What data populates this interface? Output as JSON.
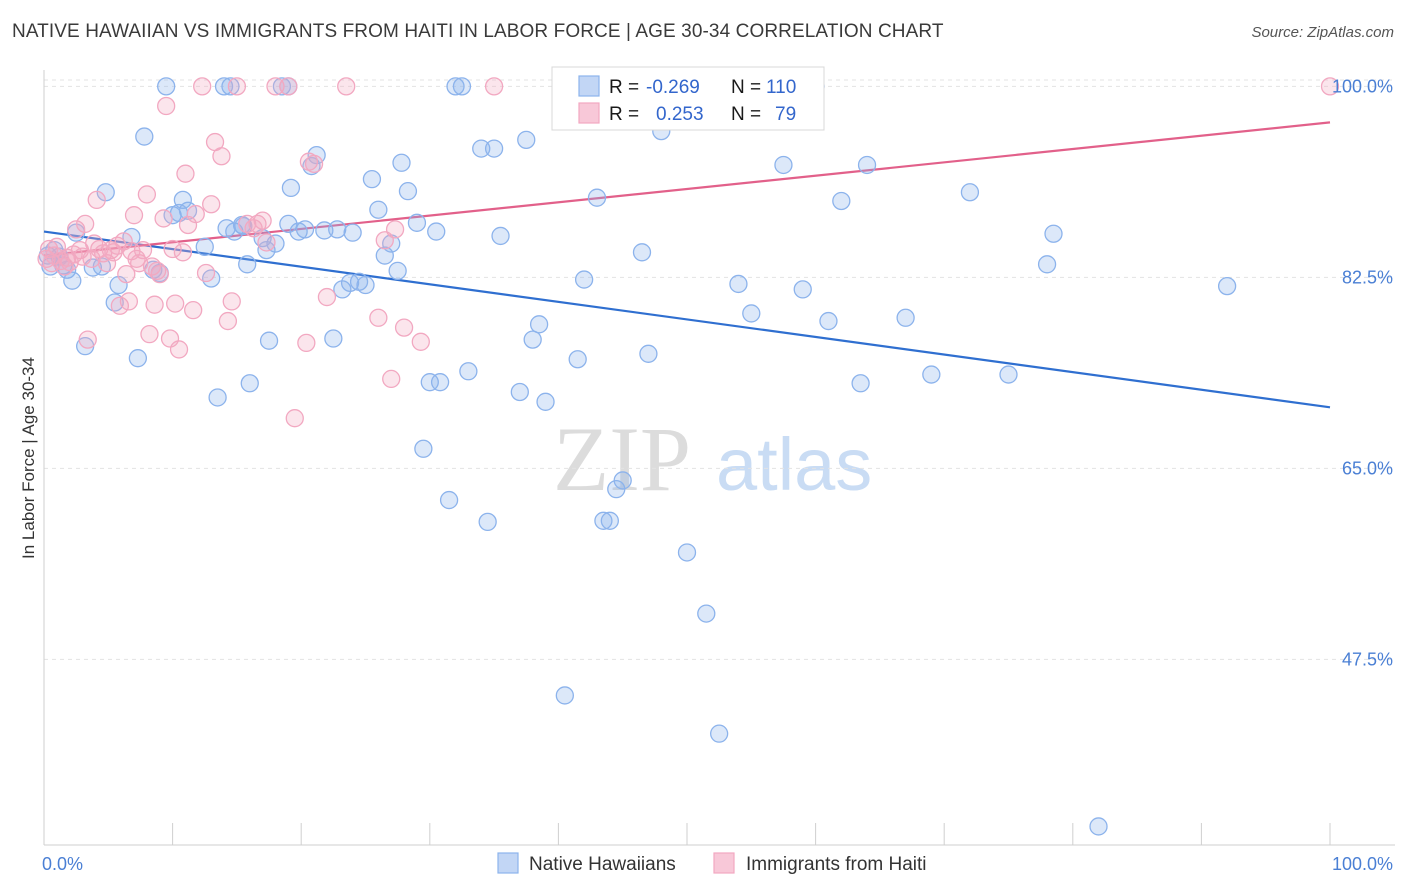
{
  "header": {
    "title": "NATIVE HAWAIIAN VS IMMIGRANTS FROM HAITI IN LABOR FORCE | AGE 30-34 CORRELATION CHART",
    "source": "Source: ZipAtlas.com"
  },
  "watermark": {
    "zip": "ZIP",
    "atlas": "atlas"
  },
  "legend": {
    "rows": [
      {
        "r_label": "R =",
        "r_value": "-0.269",
        "n_label": "N =",
        "n_value": "110"
      },
      {
        "r_label": "R =",
        "r_value": "0.253",
        "n_label": "N =",
        "n_value": "79"
      }
    ]
  },
  "chart_data": {
    "type": "scatter",
    "title": "NATIVE HAWAIIAN VS IMMIGRANTS FROM HAITI IN LABOR FORCE | AGE 30-34 CORRELATION CHART",
    "xlabel": "",
    "ylabel": "In Labor Force | Age 30-34",
    "xlim": [
      0,
      100
    ],
    "ylim": [
      30.5,
      101.5
    ],
    "x_tick_labels": [
      "0.0%",
      "100.0%"
    ],
    "y_ticks": [
      47.5,
      65.0,
      82.5,
      100.0
    ],
    "y_tick_labels": [
      "47.5%",
      "65.0%",
      "82.5%",
      "100.0%"
    ],
    "grid": true,
    "legend_position": "top-center",
    "series": [
      {
        "name": "Native Hawaiians",
        "color": "#8cb3ec",
        "line_color": "#2f6fd0",
        "r": -0.269,
        "n": 110,
        "trend": {
          "x0": 0,
          "y0": 86.7,
          "x1": 100,
          "y1": 70.6
        },
        "points": [
          [
            0.3,
            84.5
          ],
          [
            0.5,
            83.5
          ],
          [
            0.8,
            85
          ],
          [
            1.2,
            84.4
          ],
          [
            1.5,
            83.6
          ],
          [
            1.8,
            83.2
          ],
          [
            2.2,
            82.2
          ],
          [
            2.5,
            86.6
          ],
          [
            3.2,
            76.2
          ],
          [
            3.8,
            83.4
          ],
          [
            4.5,
            83.5
          ],
          [
            4.8,
            90.3
          ],
          [
            5.5,
            80.2
          ],
          [
            5.8,
            81.8
          ],
          [
            6.8,
            86.2
          ],
          [
            7.3,
            75.1
          ],
          [
            7.8,
            95.4
          ],
          [
            8.5,
            83.2
          ],
          [
            9.0,
            82.9
          ],
          [
            9.5,
            100
          ],
          [
            10.0,
            88.2
          ],
          [
            10.5,
            88.4
          ],
          [
            10.8,
            89.6
          ],
          [
            11.2,
            88.6
          ],
          [
            12.5,
            85.3
          ],
          [
            13.0,
            82.4
          ],
          [
            13.5,
            71.5
          ],
          [
            14.0,
            100
          ],
          [
            14.5,
            100
          ],
          [
            14.2,
            87.0
          ],
          [
            14.8,
            86.7
          ],
          [
            15.4,
            87.3
          ],
          [
            15.5,
            87.2
          ],
          [
            15.8,
            83.7
          ],
          [
            16.0,
            72.8
          ],
          [
            17.0,
            86.1
          ],
          [
            17.3,
            85.0
          ],
          [
            17.5,
            76.7
          ],
          [
            18.0,
            85.6
          ],
          [
            18.5,
            100
          ],
          [
            19.0,
            100
          ],
          [
            19.0,
            87.4
          ],
          [
            19.2,
            90.7
          ],
          [
            19.8,
            86.7
          ],
          [
            20.3,
            86.9
          ],
          [
            20.8,
            92.7
          ],
          [
            21.2,
            93.7
          ],
          [
            21.8,
            86.8
          ],
          [
            22.5,
            76.9
          ],
          [
            22.8,
            86.9
          ],
          [
            23.2,
            81.4
          ],
          [
            23.8,
            82.0
          ],
          [
            24.0,
            86.6
          ],
          [
            24.5,
            82.1
          ],
          [
            25.0,
            81.8
          ],
          [
            25.5,
            91.5
          ],
          [
            26.0,
            88.7
          ],
          [
            26.5,
            84.5
          ],
          [
            27.0,
            85.6
          ],
          [
            27.5,
            83.1
          ],
          [
            27.8,
            93.0
          ],
          [
            28.3,
            90.4
          ],
          [
            29.0,
            87.5
          ],
          [
            29.5,
            66.8
          ],
          [
            30.0,
            72.9
          ],
          [
            30.5,
            86.7
          ],
          [
            30.8,
            72.9
          ],
          [
            32.0,
            100
          ],
          [
            32.5,
            100
          ],
          [
            33.0,
            73.9
          ],
          [
            34.0,
            94.3
          ],
          [
            34.5,
            60.1
          ],
          [
            35.0,
            94.3
          ],
          [
            35.5,
            86.3
          ],
          [
            37.0,
            72.0
          ],
          [
            37.5,
            95.1
          ],
          [
            38.0,
            76.8
          ],
          [
            38.5,
            78.2
          ],
          [
            39.0,
            71.1
          ],
          [
            40.5,
            44.2
          ],
          [
            41.5,
            75.0
          ],
          [
            43.0,
            89.8
          ],
          [
            43.5,
            60.2
          ],
          [
            44.0,
            60.2
          ],
          [
            44.5,
            63.1
          ],
          [
            45.0,
            63.9
          ],
          [
            46.5,
            84.8
          ],
          [
            47.0,
            75.5
          ],
          [
            48.0,
            95.9
          ],
          [
            49.0,
            100
          ],
          [
            50.0,
            57.3
          ],
          [
            51.5,
            51.7
          ],
          [
            52.5,
            40.7
          ],
          [
            54.0,
            81.9
          ],
          [
            55.0,
            79.2
          ],
          [
            57.5,
            92.8
          ],
          [
            59.0,
            81.4
          ],
          [
            60.0,
            100
          ],
          [
            61.0,
            78.5
          ],
          [
            62.0,
            89.5
          ],
          [
            63.5,
            72.8
          ],
          [
            64.0,
            92.8
          ],
          [
            67.0,
            78.8
          ],
          [
            69.0,
            73.6
          ],
          [
            72.0,
            90.3
          ],
          [
            75.0,
            73.6
          ],
          [
            78.0,
            83.7
          ],
          [
            78.5,
            86.5
          ],
          [
            82.0,
            32.2
          ],
          [
            92.0,
            81.7
          ],
          [
            31.5,
            62.1
          ],
          [
            42.0,
            82.3
          ]
        ]
      },
      {
        "name": "Immigrants from Haiti",
        "color": "#f2a8c1",
        "line_color": "#e2608a",
        "r": 0.253,
        "n": 79,
        "trend": {
          "x0": 0,
          "y0": 84.5,
          "x1": 100,
          "y1": 96.7
        },
        "points": [
          [
            0.2,
            84.2
          ],
          [
            0.4,
            85.1
          ],
          [
            0.6,
            83.8
          ],
          [
            0.8,
            84.5
          ],
          [
            1.0,
            85.3
          ],
          [
            1.3,
            84.0
          ],
          [
            1.6,
            83.5
          ],
          [
            1.8,
            84.3
          ],
          [
            2.0,
            83.9
          ],
          [
            2.3,
            84.6
          ],
          [
            2.5,
            86.9
          ],
          [
            2.8,
            85.0
          ],
          [
            3.0,
            84.4
          ],
          [
            3.2,
            87.4
          ],
          [
            3.4,
            76.8
          ],
          [
            3.7,
            84.2
          ],
          [
            3.9,
            85.6
          ],
          [
            4.1,
            89.6
          ],
          [
            4.3,
            85.1
          ],
          [
            4.6,
            84.7
          ],
          [
            4.9,
            83.8
          ],
          [
            5.2,
            85.0
          ],
          [
            5.4,
            84.8
          ],
          [
            5.7,
            85.4
          ],
          [
            5.9,
            79.9
          ],
          [
            6.2,
            85.8
          ],
          [
            6.4,
            82.8
          ],
          [
            6.6,
            80.3
          ],
          [
            6.8,
            84.9
          ],
          [
            7.0,
            88.2
          ],
          [
            7.2,
            84.2
          ],
          [
            7.4,
            83.8
          ],
          [
            7.7,
            85.0
          ],
          [
            8.0,
            90.1
          ],
          [
            8.2,
            77.3
          ],
          [
            8.4,
            83.5
          ],
          [
            8.6,
            80.0
          ],
          [
            8.8,
            83.1
          ],
          [
            9.0,
            82.8
          ],
          [
            9.3,
            87.9
          ],
          [
            9.5,
            98.2
          ],
          [
            9.8,
            76.9
          ],
          [
            10.0,
            85.1
          ],
          [
            10.2,
            80.1
          ],
          [
            10.5,
            75.9
          ],
          [
            10.8,
            84.8
          ],
          [
            11.0,
            92.0
          ],
          [
            11.2,
            87.3
          ],
          [
            11.6,
            79.5
          ],
          [
            11.8,
            88.3
          ],
          [
            12.3,
            100
          ],
          [
            12.6,
            82.9
          ],
          [
            13.0,
            89.2
          ],
          [
            13.3,
            94.9
          ],
          [
            13.8,
            93.6
          ],
          [
            14.3,
            78.5
          ],
          [
            14.6,
            80.3
          ],
          [
            15.0,
            100
          ],
          [
            15.8,
            87.4
          ],
          [
            16.3,
            87.0
          ],
          [
            16.6,
            87.4
          ],
          [
            17.0,
            87.7
          ],
          [
            17.3,
            85.7
          ],
          [
            18.0,
            100
          ],
          [
            19.0,
            100
          ],
          [
            19.5,
            69.6
          ],
          [
            20.4,
            76.5
          ],
          [
            20.6,
            93.1
          ],
          [
            21.0,
            92.9
          ],
          [
            22.0,
            80.7
          ],
          [
            23.5,
            100
          ],
          [
            26.0,
            78.8
          ],
          [
            26.5,
            85.9
          ],
          [
            27.0,
            73.2
          ],
          [
            27.3,
            86.9
          ],
          [
            28.0,
            77.9
          ],
          [
            29.3,
            76.6
          ],
          [
            35.0,
            100
          ],
          [
            100.0,
            100
          ]
        ]
      }
    ]
  }
}
